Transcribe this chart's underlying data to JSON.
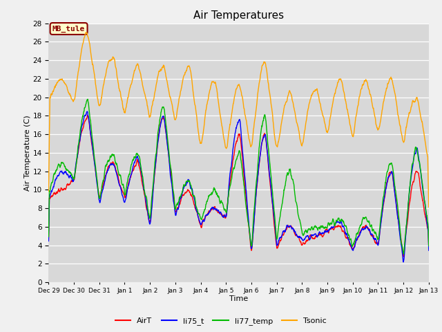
{
  "title": "Air Temperatures",
  "xlabel": "Time",
  "ylabel": "Air Temperature (C)",
  "ylim": [
    0,
    28
  ],
  "label_text": "MB_tule",
  "legend_entries": [
    "AirT",
    "li75_t",
    "li77_temp",
    "Tsonic"
  ],
  "line_colors": [
    "#ff0000",
    "#0000ff",
    "#00bb00",
    "#ffa500"
  ],
  "fig_bg": "#f0f0f0",
  "plot_bg": "#d8d8d8",
  "x_tick_labels": [
    "Dec 29",
    "Dec 30",
    "Dec 31",
    "Jan 1",
    "Jan 2",
    "Jan 3",
    "Jan 4",
    "Jan 5",
    "Jan 6",
    "Jan 7",
    "Jan 8",
    "Jan 9",
    "Jan 10",
    "Jan 11",
    "Jan 12",
    "Jan 13"
  ],
  "yticks": [
    0,
    2,
    4,
    6,
    8,
    10,
    12,
    14,
    16,
    18,
    20,
    22,
    24,
    26,
    28
  ]
}
